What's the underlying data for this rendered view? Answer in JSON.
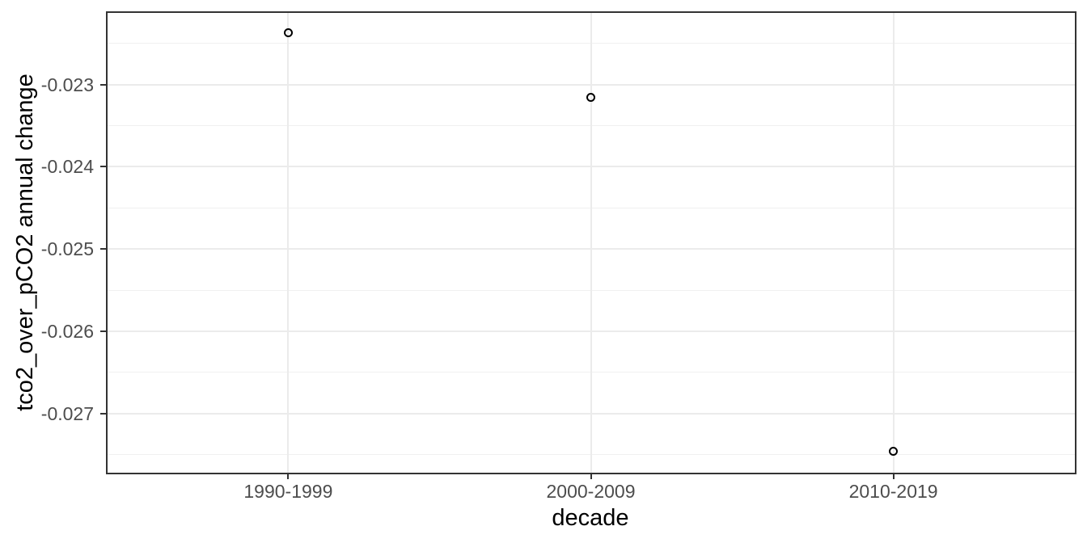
{
  "chart_data": {
    "type": "scatter",
    "title": "",
    "xlabel": "decade",
    "ylabel": "tco2_over_pCO2 annual change",
    "categories": [
      "1990-1999",
      "2000-2009",
      "2010-2019"
    ],
    "values": [
      -0.02237,
      -0.02316,
      -0.02746
    ],
    "point_style": "open-circle",
    "ylim": [
      -0.02772,
      -0.02212
    ],
    "y_major_ticks": [
      {
        "label": "-0.023",
        "value": -0.023
      },
      {
        "label": "-0.024",
        "value": -0.024
      },
      {
        "label": "-0.025",
        "value": -0.025
      },
      {
        "label": "-0.026",
        "value": -0.026
      },
      {
        "label": "-0.027",
        "value": -0.027
      }
    ],
    "y_minor_ticks": [
      -0.0225,
      -0.0235,
      -0.0245,
      -0.0255,
      -0.0265,
      -0.0275
    ],
    "grid": true,
    "legend": false,
    "colors": {
      "background": "#FFFFFF",
      "panel_background": "#FFFFFF",
      "panel_border": "#333333",
      "grid_major": "#EBEBEB",
      "grid_minor": "#F0F0F0",
      "tick_mark": "#333333",
      "tick_label": "#4D4D4D",
      "axis_title": "#000000",
      "point_stroke": "#000000"
    }
  }
}
